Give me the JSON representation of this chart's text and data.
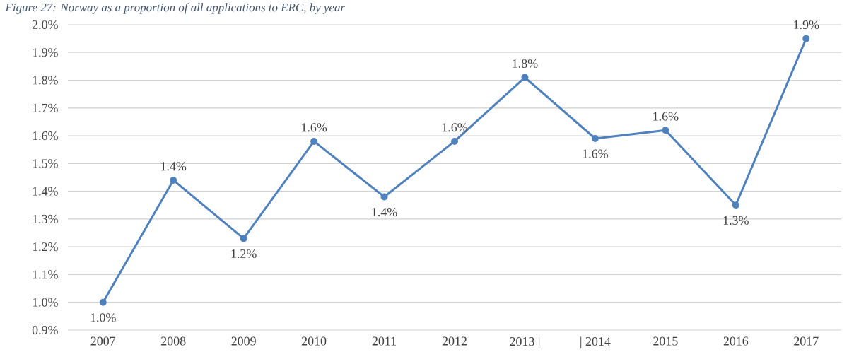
{
  "chart_data": {
    "type": "line",
    "title": "Figure 27: Norway as a proportion of all applications to ERC, by year",
    "categories": [
      "2007",
      "2008",
      "2009",
      "2010",
      "2011",
      "2012",
      "2013 |",
      "| 2014",
      "2015",
      "2016",
      "2017"
    ],
    "series": [
      {
        "color": "#4f81bd",
        "values": [
          1.0,
          1.44,
          1.23,
          1.58,
          1.38,
          1.58,
          1.81,
          1.59,
          1.62,
          1.35,
          1.95
        ],
        "value_labels": [
          "1.0%",
          "1.4%",
          "1.2%",
          "1.6%",
          "1.4%",
          "1.6%",
          "1.8%",
          "1.6%",
          "1.6%",
          "1.3%",
          "1.9%"
        ]
      }
    ],
    "ylim": [
      0.9,
      2.0
    ],
    "yticks": [
      {
        "value": 0.9,
        "label": "0.9%"
      },
      {
        "value": 1.0,
        "label": "1.0%"
      },
      {
        "value": 1.1,
        "label": "1.1%"
      },
      {
        "value": 1.2,
        "label": "1.2%"
      },
      {
        "value": 1.3,
        "label": "1.3%"
      },
      {
        "value": 1.4,
        "label": "1.4%"
      },
      {
        "value": 1.5,
        "label": "1.5%"
      },
      {
        "value": 1.6,
        "label": "1.6%"
      },
      {
        "value": 1.7,
        "label": "1.7%"
      },
      {
        "value": 1.8,
        "label": "1.8%"
      },
      {
        "value": 1.9,
        "label": "1.9%"
      },
      {
        "value": 2.0,
        "label": "2.0%"
      }
    ],
    "grid": "y",
    "marker": "circle",
    "line_style": "solid"
  }
}
